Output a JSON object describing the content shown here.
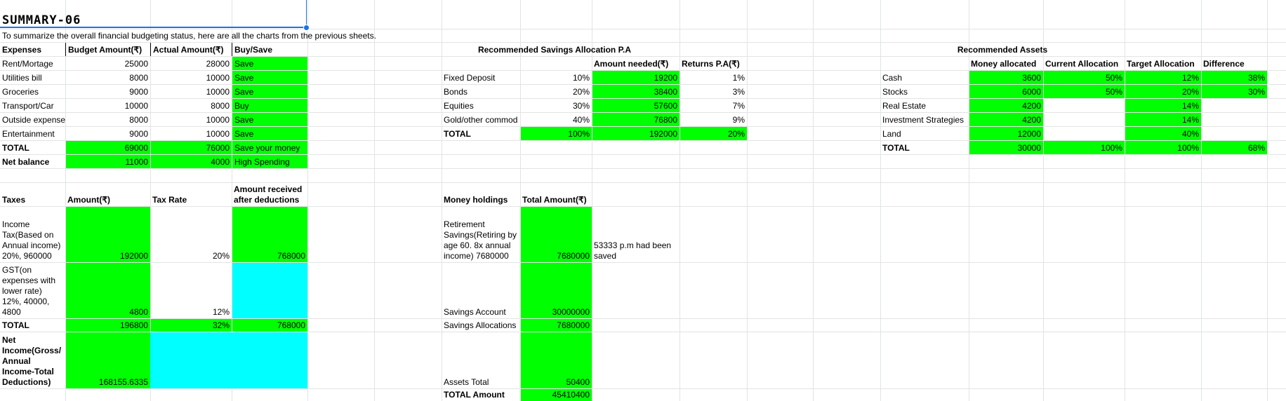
{
  "title": "SUMMARY-06",
  "subtitle": "To summarize the overall financial budgeting status, here are all the charts from the previous sheets.",
  "expenses": {
    "headers": [
      "Expenses",
      "Budget Amount(₹)",
      "Actual Amount(₹)",
      "Buy/Save"
    ],
    "rows": [
      [
        "Rent/Mortage",
        "25000",
        "28000",
        "Save"
      ],
      [
        "Utilities bill",
        "8000",
        "10000",
        "Save"
      ],
      [
        "Groceries",
        "9000",
        "10000",
        "Save"
      ],
      [
        "Transport/Car",
        "10000",
        "8000",
        "Buy"
      ],
      [
        "Outside expense",
        "8000",
        "10000",
        "Save"
      ],
      [
        "Entertainment",
        "9000",
        "10000",
        "Save"
      ],
      [
        "TOTAL",
        "69000",
        "76000",
        "Save your money"
      ],
      [
        "Net balance",
        "11000",
        "4000",
        "High Spending"
      ]
    ]
  },
  "savings": {
    "title": "Recommended Savings Allocation P.A",
    "headers": [
      "Amount needed(₹)",
      "Returns P.A(₹)"
    ],
    "rows": [
      [
        "Fixed Deposit",
        "10%",
        "19200",
        "1%"
      ],
      [
        "Bonds",
        "20%",
        "38400",
        "3%"
      ],
      [
        "Equities",
        "30%",
        "57600",
        "7%"
      ],
      [
        "Gold/other commod",
        "40%",
        "76800",
        "9%"
      ],
      [
        "TOTAL",
        "100%",
        "192000",
        "20%"
      ]
    ]
  },
  "assets": {
    "title": "Recommended Assets",
    "headers": [
      "Money allocated",
      "Current Allocation",
      "Target Allocation",
      "Difference"
    ],
    "rows": [
      [
        "Cash",
        "3600",
        "50%",
        "12%",
        "38%"
      ],
      [
        "Stocks",
        "6000",
        "50%",
        "20%",
        "30%"
      ],
      [
        "Real Estate",
        "4200",
        "",
        "14%",
        ""
      ],
      [
        "Investment Strategies",
        "4200",
        "",
        "14%",
        ""
      ],
      [
        "Land",
        "12000",
        "",
        "40%",
        ""
      ],
      [
        "TOTAL",
        "30000",
        "100%",
        "100%",
        "68%"
      ]
    ]
  },
  "taxes": {
    "headers": [
      "Taxes",
      "Amount(₹)",
      "Tax Rate",
      "Amount received after deductions"
    ],
    "income_label": "Income Tax(Based on Annual income) 20%, 960000",
    "income_amount": "192000",
    "income_rate": "20%",
    "income_received": "768000",
    "gst_label": "GST(on expenses with lower rate) 12%, 40000, 4800",
    "gst_amount": "4800",
    "gst_rate": "12%",
    "total_label": "TOTAL",
    "total_amount": "196800",
    "total_rate": "32%",
    "total_received": "768000",
    "net_label": "Net Income(Gross/ Annual Income-Total Deductions)",
    "net_amount": "168155.6335"
  },
  "holdings": {
    "headers": [
      "Money holdings",
      "Total Amount(₹)"
    ],
    "retirement_label": "Retirement Savings(Retiring by age 60. 8x annual income) 7680000",
    "retirement_amount": "7680000",
    "retirement_note": "53333 p.m had been saved",
    "savings_account_label": "Savings Account",
    "savings_account_amount": "30000000",
    "savings_alloc_label": "Savings Allocations",
    "savings_alloc_amount": "7680000",
    "assets_total_label": "Assets Total",
    "assets_total_amount": "50400",
    "total_amount_label": "TOTAL Amount",
    "total_amount_value": "45410400"
  }
}
